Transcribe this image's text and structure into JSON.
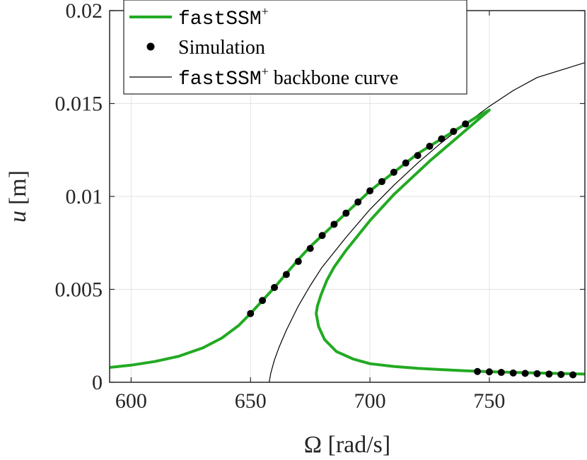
{
  "chart_data": {
    "type": "line",
    "title": "",
    "xlabel": "Ω [rad/s]",
    "ylabel_symbol": "u",
    "ylabel_unit": "[m]",
    "xlim": [
      591,
      790
    ],
    "ylim": [
      0,
      0.02
    ],
    "xticks": [
      600,
      650,
      700,
      750
    ],
    "xtick_labels": [
      "600",
      "650",
      "700",
      "750"
    ],
    "yticks": [
      0,
      0.005,
      0.01,
      0.015,
      0.02
    ],
    "ytick_labels": [
      "0",
      "0.005",
      "0.01",
      "0.015",
      "0.02"
    ],
    "grid": true,
    "legend_position": "top-left",
    "colors": {
      "fastssm": "#22aa22",
      "simulation": "#000000",
      "backbone": "#000000"
    },
    "legend": [
      {
        "id": "fastssm",
        "mono": "fastSSM",
        "sup": "+",
        "rest": ""
      },
      {
        "id": "simulation",
        "mono": "",
        "sup": "",
        "rest": "Simulation"
      },
      {
        "id": "backbone",
        "mono": "fastSSM",
        "sup": "+",
        "rest": " backbone curve"
      }
    ],
    "series": [
      {
        "id": "fastssm",
        "kind": "line",
        "x": [
          591,
          600,
          610,
          620,
          630,
          638,
          645,
          650,
          655,
          660,
          665,
          670,
          675,
          680,
          685,
          690,
          695,
          700,
          705,
          710,
          715,
          720,
          725,
          730,
          735,
          740,
          745,
          750,
          745,
          740,
          735,
          730,
          725,
          720,
          715,
          710,
          705,
          700,
          695,
          690,
          685,
          682,
          679.5,
          678,
          677.5,
          678.5,
          681,
          686,
          693,
          700,
          710,
          720,
          730,
          740,
          750,
          760,
          770,
          780,
          790
        ],
        "y": [
          0.0008,
          0.00092,
          0.00112,
          0.0014,
          0.00185,
          0.00238,
          0.00305,
          0.0037,
          0.0044,
          0.0051,
          0.00585,
          0.0066,
          0.0073,
          0.0079,
          0.0085,
          0.0091,
          0.0097,
          0.0103,
          0.0108,
          0.0113,
          0.0118,
          0.0123,
          0.0127,
          0.0131,
          0.0135,
          0.0139,
          0.0143,
          0.01465,
          0.0141,
          0.01355,
          0.013,
          0.01245,
          0.0119,
          0.0113,
          0.0107,
          0.0101,
          0.0094,
          0.0087,
          0.0079,
          0.0071,
          0.0062,
          0.0055,
          0.0047,
          0.0041,
          0.0037,
          0.003,
          0.0023,
          0.00165,
          0.00125,
          0.001,
          0.00085,
          0.00075,
          0.00068,
          0.00062,
          0.00057,
          0.00053,
          0.0005,
          0.00047,
          0.00044
        ]
      },
      {
        "id": "simulation",
        "kind": "scatter",
        "x": [
          650,
          655,
          660,
          665,
          670,
          675,
          680,
          685,
          690,
          695,
          700,
          705,
          710,
          715,
          720,
          725,
          730,
          735,
          740,
          745,
          750,
          755,
          760,
          765,
          770,
          775,
          780,
          785
        ],
        "y": [
          0.0037,
          0.0044,
          0.0051,
          0.0058,
          0.0065,
          0.0072,
          0.0079,
          0.0085,
          0.0091,
          0.0097,
          0.0103,
          0.0108,
          0.0113,
          0.0118,
          0.0122,
          0.0127,
          0.0131,
          0.0135,
          0.0139,
          0.00058,
          0.00056,
          0.00053,
          0.0005,
          0.00048,
          0.00046,
          0.00044,
          0.00042,
          0.0004
        ]
      },
      {
        "id": "backbone",
        "kind": "line",
        "x": [
          657.8,
          658.5,
          660,
          662,
          665,
          670,
          675,
          680,
          690,
          700,
          710,
          720,
          730,
          740,
          750,
          760,
          770,
          780,
          790
        ],
        "y": [
          0.0,
          0.0005,
          0.0012,
          0.0019,
          0.0028,
          0.0041,
          0.0052,
          0.0062,
          0.0078,
          0.0093,
          0.0106,
          0.0118,
          0.0129,
          0.0139,
          0.01485,
          0.0157,
          0.0164,
          0.0168,
          0.0172
        ]
      }
    ]
  }
}
